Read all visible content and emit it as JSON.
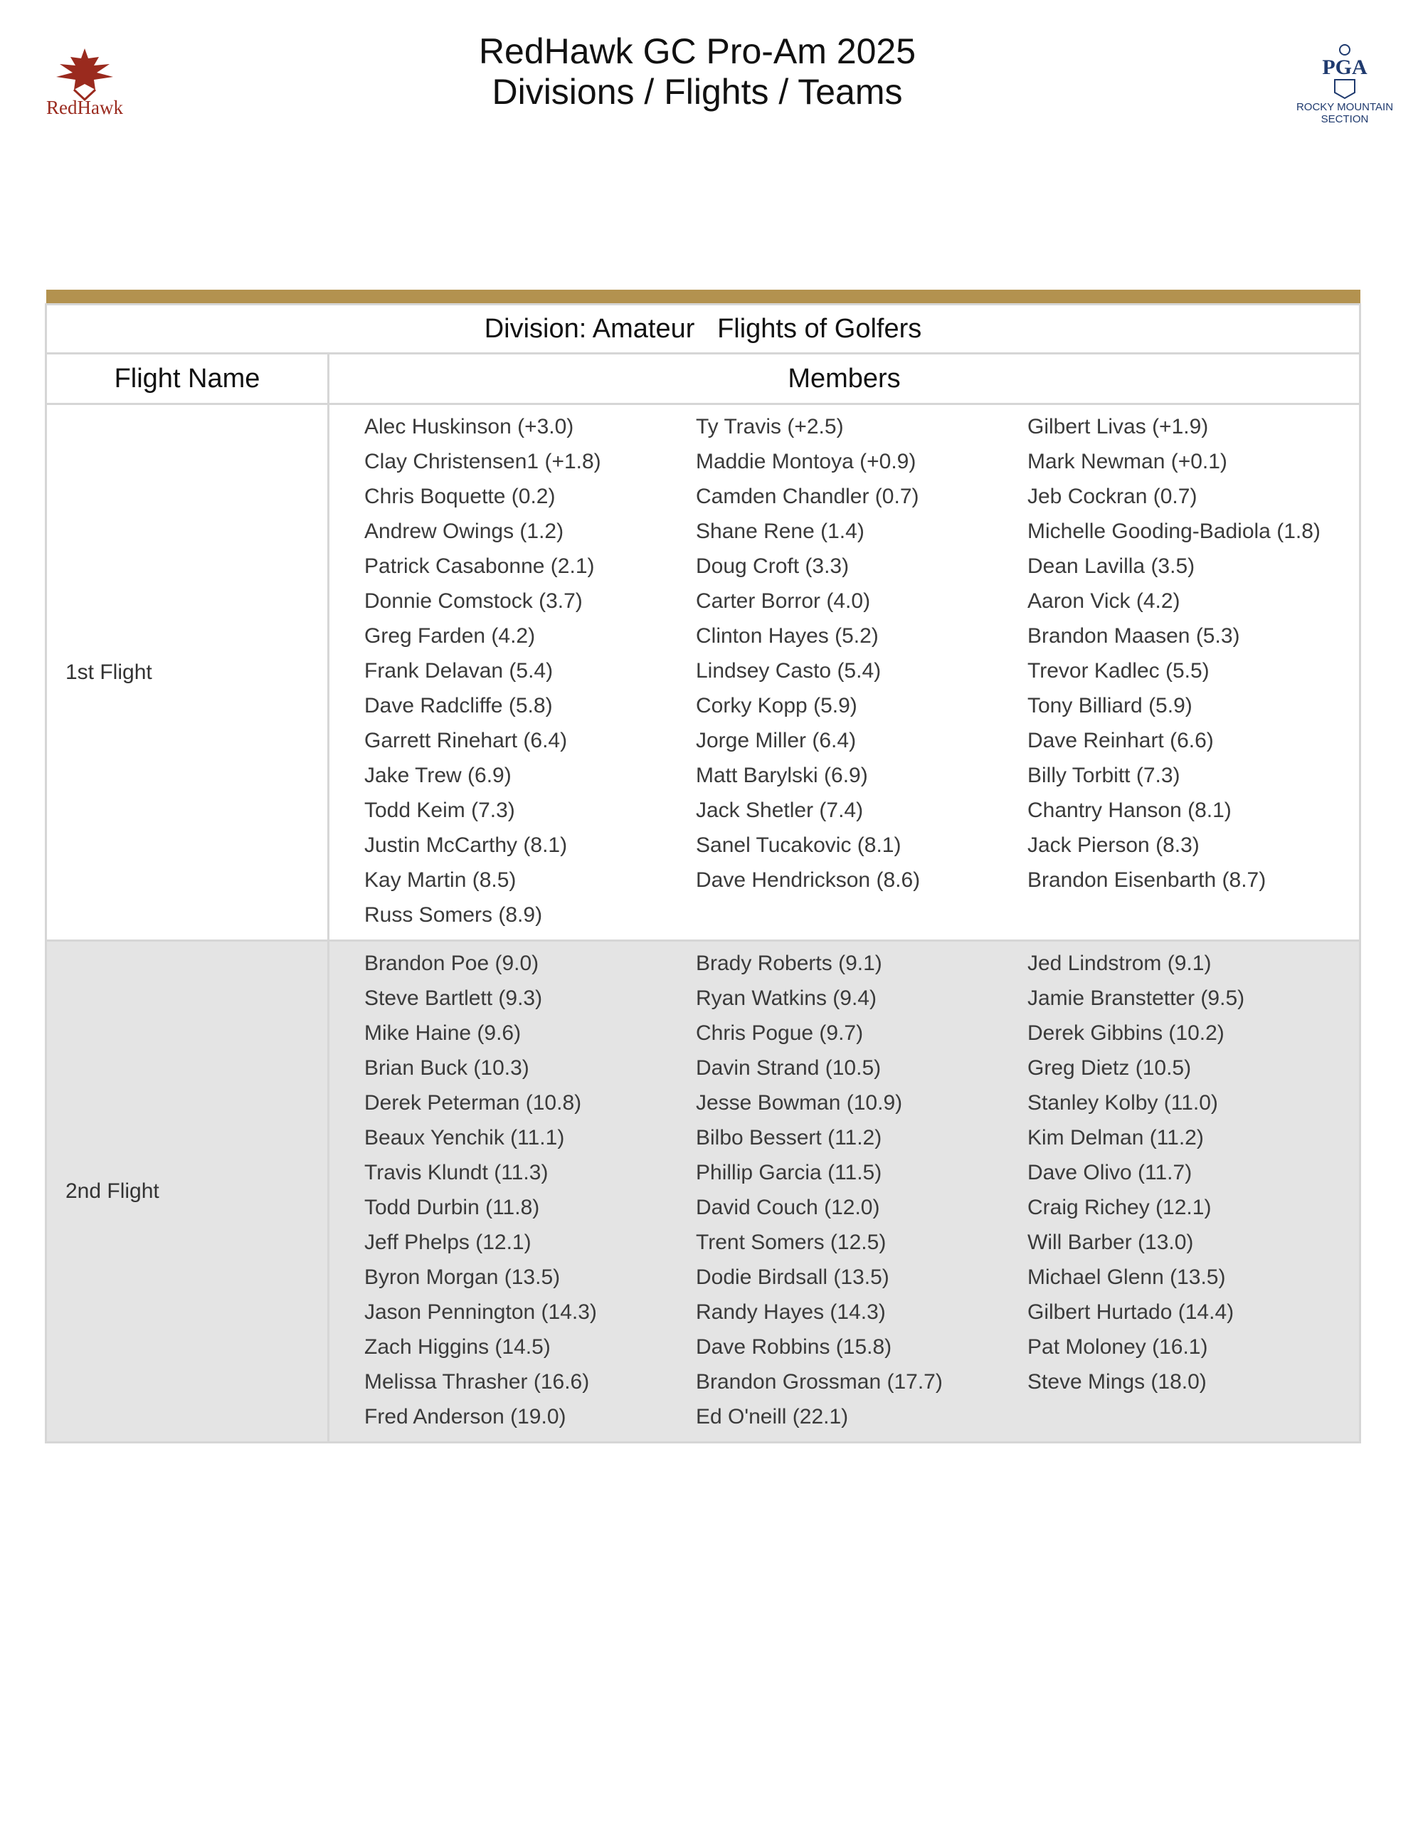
{
  "header": {
    "title_line1": "RedHawk GC Pro-Am 2025",
    "title_line2": "Divisions / Flights / Teams",
    "left_logo_text": "RedHawk",
    "right_logo_text": "PGA",
    "right_logo_caption_1": "ROCKY MOUNTAIN",
    "right_logo_caption_2": "SECTION"
  },
  "table": {
    "division": "Division: Amateur",
    "caption": "Flights of Golfers",
    "col_flight": "Flight Name",
    "col_members": "Members",
    "flights": [
      {
        "name": "1st Flight",
        "members": [
          "Alec Huskinson (+3.0)",
          "Ty Travis (+2.5)",
          "Gilbert Livas (+1.9)",
          "Clay Christensen1 (+1.8)",
          "Maddie Montoya (+0.9)",
          "Mark Newman (+0.1)",
          "Chris Boquette (0.2)",
          "Camden Chandler (0.7)",
          "Jeb Cockran (0.7)",
          "Andrew Owings (1.2)",
          "Shane Rene (1.4)",
          "Michelle Gooding-Badiola (1.8)",
          "Patrick Casabonne (2.1)",
          "Doug Croft (3.3)",
          "Dean Lavilla (3.5)",
          "Donnie Comstock (3.7)",
          "Carter Borror (4.0)",
          "Aaron Vick (4.2)",
          "Greg Farden (4.2)",
          "Clinton Hayes (5.2)",
          "Brandon Maasen (5.3)",
          "Frank Delavan (5.4)",
          "Lindsey Casto (5.4)",
          "Trevor Kadlec (5.5)",
          "Dave Radcliffe (5.8)",
          "Corky Kopp (5.9)",
          "Tony Billiard (5.9)",
          "Garrett Rinehart (6.4)",
          "Jorge Miller (6.4)",
          "Dave Reinhart (6.6)",
          "Jake Trew (6.9)",
          "Matt Barylski (6.9)",
          "Billy Torbitt (7.3)",
          "Todd Keim (7.3)",
          "Jack Shetler (7.4)",
          "Chantry Hanson (8.1)",
          "Justin McCarthy (8.1)",
          "Sanel Tucakovic (8.1)",
          "Jack Pierson (8.3)",
          "Kay Martin (8.5)",
          "Dave Hendrickson (8.6)",
          "Brandon Eisenbarth (8.7)",
          "Russ Somers (8.9)"
        ]
      },
      {
        "name": "2nd Flight",
        "members": [
          "Brandon Poe (9.0)",
          "Brady Roberts (9.1)",
          "Jed Lindstrom (9.1)",
          "Steve Bartlett (9.3)",
          "Ryan Watkins (9.4)",
          "Jamie Branstetter (9.5)",
          "Mike Haine (9.6)",
          "Chris Pogue (9.7)",
          "Derek Gibbins (10.2)",
          "Brian Buck (10.3)",
          "Davin Strand (10.5)",
          "Greg Dietz (10.5)",
          "Derek Peterman (10.8)",
          "Jesse Bowman (10.9)",
          "Stanley Kolby (11.0)",
          "Beaux Yenchik (11.1)",
          "Bilbo Bessert (11.2)",
          "Kim Delman (11.2)",
          "Travis Klundt (11.3)",
          "Phillip Garcia (11.5)",
          "Dave Olivo (11.7)",
          "Todd Durbin (11.8)",
          "David Couch (12.0)",
          "Craig Richey (12.1)",
          "Jeff Phelps (12.1)",
          "Trent Somers (12.5)",
          "Will Barber (13.0)",
          "Byron Morgan (13.5)",
          "Dodie Birdsall (13.5)",
          "Michael Glenn (13.5)",
          "Jason Pennington (14.3)",
          "Randy Hayes (14.3)",
          "Gilbert Hurtado (14.4)",
          "Zach Higgins (14.5)",
          "Dave Robbins (15.8)",
          "Pat Moloney (16.1)",
          "Melissa Thrasher (16.6)",
          "Brandon Grossman (17.7)",
          "Steve Mings (18.0)",
          "Fred Anderson (19.0)",
          "Ed O'neill (22.1)"
        ]
      }
    ]
  }
}
